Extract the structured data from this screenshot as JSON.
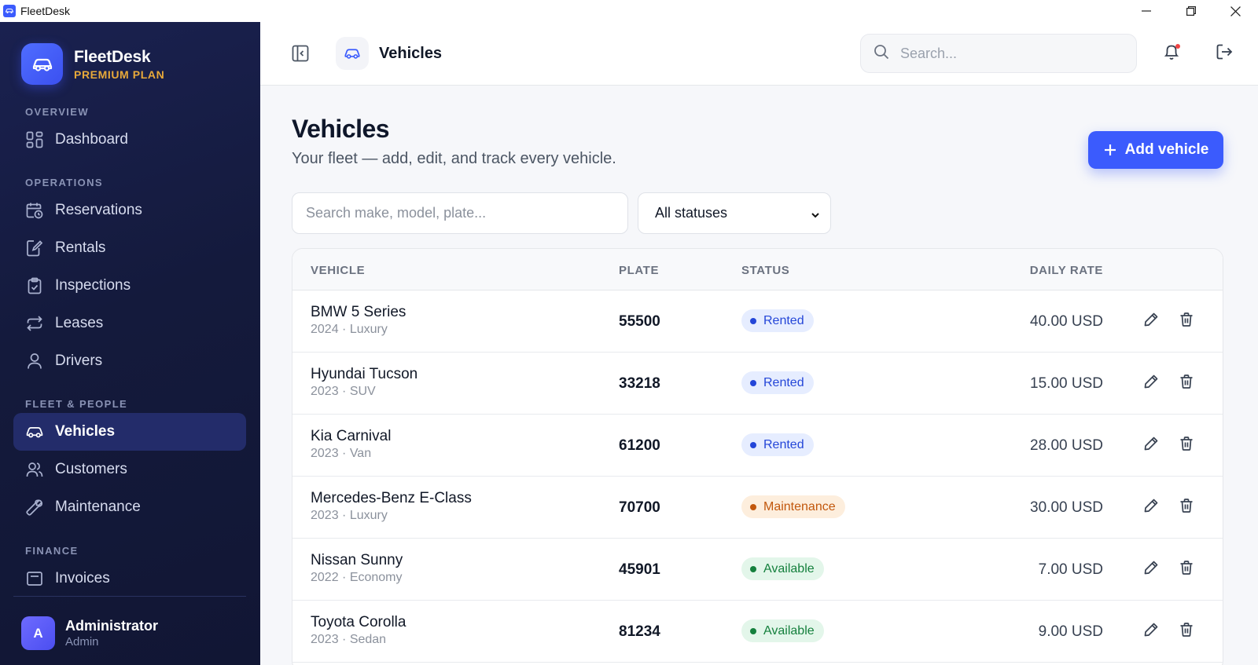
{
  "window": {
    "title": "FleetDesk"
  },
  "brand": {
    "name": "FleetDesk",
    "plan": "PREMIUM PLAN"
  },
  "sidebar": {
    "sections": [
      {
        "title": "OVERVIEW"
      },
      {
        "title": "OPERATIONS"
      },
      {
        "title": "FLEET & PEOPLE"
      },
      {
        "title": "FINANCE"
      }
    ],
    "items": [
      {
        "label": "Dashboard",
        "icon": "dashboard-icon"
      },
      {
        "label": "Reservations",
        "icon": "calendar-clock-icon"
      },
      {
        "label": "Rentals",
        "icon": "document-edit-icon"
      },
      {
        "label": "Inspections",
        "icon": "clipboard-check-icon"
      },
      {
        "label": "Leases",
        "icon": "repeat-icon"
      },
      {
        "label": "Drivers",
        "icon": "user-icon"
      },
      {
        "label": "Vehicles",
        "icon": "car-icon",
        "active": true
      },
      {
        "label": "Customers",
        "icon": "users-icon"
      },
      {
        "label": "Maintenance",
        "icon": "wrench-icon"
      },
      {
        "label": "Invoices",
        "icon": "invoice-icon"
      }
    ],
    "user": {
      "initial": "A",
      "name": "Administrator",
      "role": "Admin"
    }
  },
  "topbar": {
    "title": "Vehicles",
    "search_placeholder": "Search..."
  },
  "main": {
    "title": "Vehicles",
    "subtitle": "Your fleet — add, edit, and track every vehicle.",
    "add_button": "Add vehicle",
    "filter_placeholder": "Search make, model, plate...",
    "status_filter": "All statuses"
  },
  "table": {
    "columns": [
      "VEHICLE",
      "PLATE",
      "STATUS",
      "DAILY RATE"
    ],
    "rows": [
      {
        "name": "BMW 5 Series",
        "meta": "2024 · Luxury",
        "plate": "55500",
        "status": "Rented",
        "rate": "40.00 USD"
      },
      {
        "name": "Hyundai Tucson",
        "meta": "2023 · SUV",
        "plate": "33218",
        "status": "Rented",
        "rate": "15.00 USD"
      },
      {
        "name": "Kia Carnival",
        "meta": "2023 · Van",
        "plate": "61200",
        "status": "Rented",
        "rate": "28.00 USD"
      },
      {
        "name": "Mercedes-Benz E-Class",
        "meta": "2023 · Luxury",
        "plate": "70700",
        "status": "Maintenance",
        "rate": "30.00 USD"
      },
      {
        "name": "Nissan Sunny",
        "meta": "2022 · Economy",
        "plate": "45901",
        "status": "Available",
        "rate": "7.00 USD"
      },
      {
        "name": "Toyota Corolla",
        "meta": "2023 · Sedan",
        "plate": "81234",
        "status": "Available",
        "rate": "9.00 USD"
      }
    ]
  },
  "colors": {
    "accent": "#3b5bfd",
    "sidebar_bg": "#141a3c",
    "plan": "#e8a93a",
    "status_rented_bg": "#e6edff",
    "status_rented_fg": "#2446d8",
    "status_maintenance_bg": "#fdeedd",
    "status_maintenance_fg": "#c2570c",
    "status_available_bg": "#e3f6ea",
    "status_available_fg": "#15803d"
  }
}
